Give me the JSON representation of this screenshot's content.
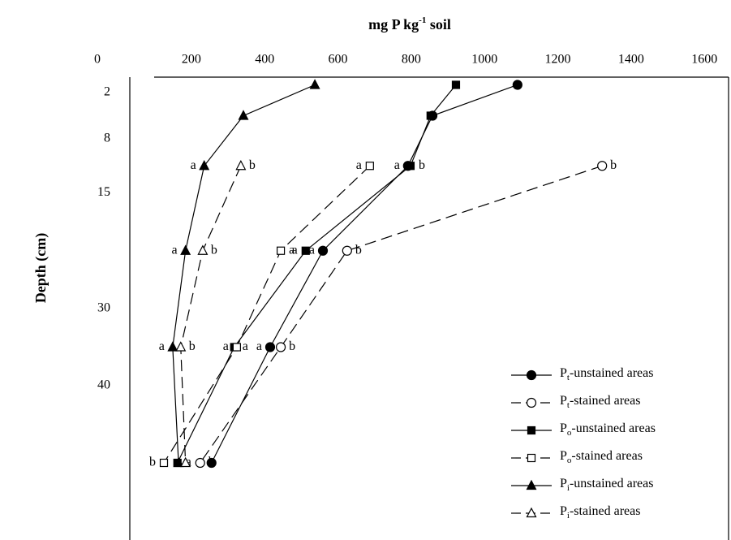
{
  "chart_data": {
    "type": "line",
    "title": "mg P kg-1 soil",
    "y_label": "Depth (cm)",
    "y": [
      1,
      5,
      11.5,
      22.5,
      35,
      50
    ],
    "ylim": [
      0,
      60
    ],
    "y_reversed": true,
    "yticks": [
      2,
      8,
      15,
      30,
      40
    ],
    "xlim": [
      32,
      1666
    ],
    "xticks": [
      0,
      200,
      400,
      600,
      800,
      1000,
      1200,
      1400,
      1600
    ],
    "x_axis_position": "top",
    "legend": "lower right",
    "series": [
      {
        "name": "Pt-unstained areas",
        "color": "#000000",
        "marker": "circle",
        "filled": true,
        "dashed": false,
        "values": [
          1090,
          858,
          791,
          559,
          415,
          255
        ],
        "letters": [
          null,
          null,
          "a",
          "a",
          "a",
          "a"
        ]
      },
      {
        "name": "Pt-stained areas",
        "color": "#000000",
        "marker": "circle",
        "filled": false,
        "dashed": true,
        "values": [
          null,
          null,
          1321,
          625,
          444,
          224
        ],
        "letters": [
          null,
          null,
          "b",
          "b",
          "b",
          "b"
        ]
      },
      {
        "name": "Po-unstained areas",
        "color": "#000000",
        "marker": "square",
        "filled": true,
        "dashed": false,
        "values": [
          922,
          853,
          798,
          512,
          317,
          162
        ],
        "letters": [
          null,
          null,
          "b",
          "a",
          "a",
          "a"
        ]
      },
      {
        "name": "Po-stained areas",
        "color": "#000000",
        "marker": "square",
        "filled": false,
        "dashed": true,
        "values": [
          null,
          null,
          687,
          444,
          324,
          125
        ],
        "letters": [
          null,
          null,
          "a",
          "a",
          "a",
          "b"
        ]
      },
      {
        "name": "Pi-unstained areas",
        "color": "#000000",
        "marker": "triangle",
        "filled": true,
        "dashed": false,
        "values": [
          537,
          342,
          235,
          184,
          149,
          165
        ],
        "letters": [
          null,
          null,
          "a",
          "a",
          "a",
          null
        ]
      },
      {
        "name": "Pi-stained areas",
        "color": "#000000",
        "marker": "triangle",
        "filled": false,
        "dashed": true,
        "values": [
          null,
          null,
          335,
          231,
          171,
          184
        ],
        "letters": [
          null,
          null,
          "b",
          "b",
          "b",
          null
        ]
      }
    ]
  }
}
